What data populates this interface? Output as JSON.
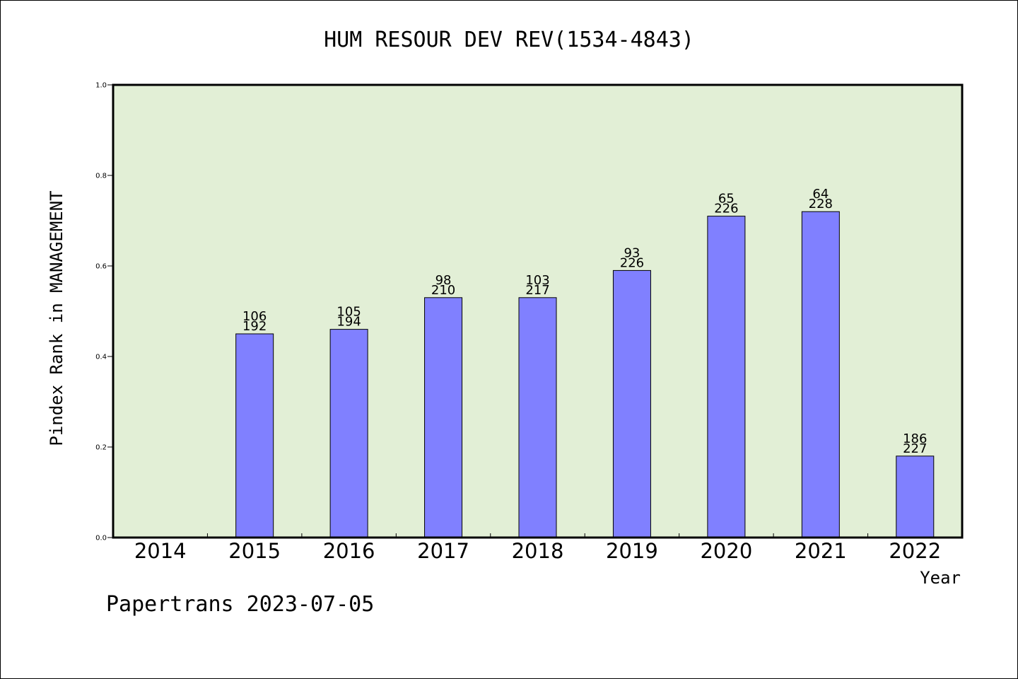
{
  "chart_data": {
    "type": "bar",
    "title": "HUM RESOUR DEV REV(1534-4843)",
    "xlabel": "Year",
    "ylabel": "Pindex Rank in MANAGEMENT",
    "ylim": [
      0,
      1.0
    ],
    "yticks": [
      "0.0",
      "0.2",
      "0.4",
      "0.6",
      "0.8",
      "1.0"
    ],
    "categories": [
      "2014",
      "2015",
      "2016",
      "2017",
      "2018",
      "2019",
      "2020",
      "2021",
      "2022"
    ],
    "values": [
      null,
      0.45,
      0.46,
      0.53,
      0.53,
      0.59,
      0.71,
      0.72,
      0.18
    ],
    "labels_top": [
      "",
      "106",
      "105",
      "98",
      "103",
      "93",
      "65",
      "64",
      "186"
    ],
    "labels_bottom": [
      "",
      "192",
      "194",
      "210",
      "217",
      "226",
      "226",
      "228",
      "227"
    ],
    "grid": false,
    "colors": {
      "plot_background": "#e2efd6",
      "bar_fill": "#8080ff",
      "bar_stroke": "#000000"
    }
  },
  "footer": "Papertrans 2023-07-05"
}
